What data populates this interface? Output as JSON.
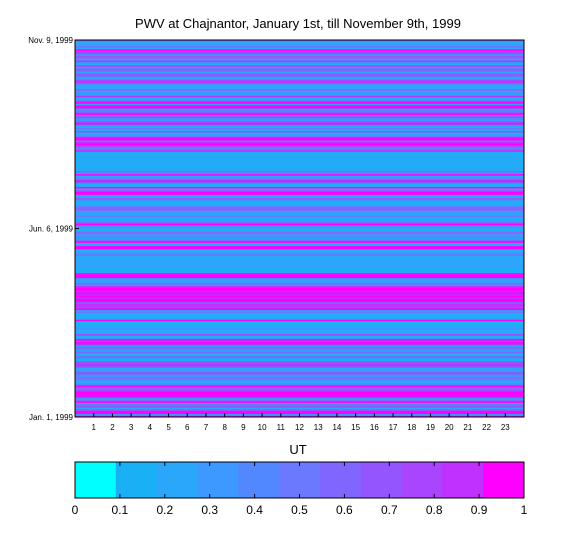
{
  "chart_data": {
    "type": "heatmap",
    "title": "PWV at Chajnantor, January 1st, till November 9th, 1999",
    "xlabel": "UT",
    "ylabel": "",
    "x_ticks": [
      "1",
      "2",
      "3",
      "4",
      "5",
      "6",
      "7",
      "8",
      "9",
      "10",
      "11",
      "12",
      "13",
      "14",
      "15",
      "16",
      "17",
      "18",
      "19",
      "20",
      "21",
      "22",
      "23"
    ],
    "y_ticks": [
      "Jan. 1, 1999",
      "Jun. 6, 1999",
      "Nov. 9, 1999"
    ],
    "colorbar": {
      "ticks": [
        "0",
        "0.1",
        "0.2",
        "0.3",
        "0.4",
        "0.5",
        "0.6",
        "0.7",
        "0.8",
        "0.9",
        "1"
      ],
      "colors": [
        "#00ffff",
        "#1ab0f5",
        "#2aa6fb",
        "#3d98ff",
        "#5288ff",
        "#6a79ff",
        "#8066ff",
        "#9455ff",
        "#a944ff",
        "#c030ff",
        "#ff00ff"
      ]
    },
    "bands": [
      {
        "y0": 0.0,
        "y1": 0.08,
        "value": 0.9
      },
      {
        "y0": 0.08,
        "y1": 0.14,
        "value": 0.5
      },
      {
        "y0": 0.14,
        "y1": 0.245,
        "value": 0.55
      },
      {
        "y0": 0.245,
        "y1": 0.275,
        "value": 0.15
      },
      {
        "y0": 0.275,
        "y1": 0.345,
        "value": 0.9
      },
      {
        "y0": 0.345,
        "y1": 0.38,
        "value": 0.35
      },
      {
        "y0": 0.38,
        "y1": 0.42,
        "value": 0.25
      },
      {
        "y0": 0.42,
        "y1": 0.47,
        "value": 0.3
      },
      {
        "y0": 0.47,
        "y1": 0.56,
        "value": 0.2
      },
      {
        "y0": 0.56,
        "y1": 0.6,
        "value": 0.45
      },
      {
        "y0": 0.6,
        "y1": 0.7,
        "value": 0.2
      },
      {
        "y0": 0.7,
        "y1": 0.72,
        "value": 0.5
      },
      {
        "y0": 0.72,
        "y1": 0.75,
        "value": 0.9
      },
      {
        "y0": 0.75,
        "y1": 0.88,
        "value": 0.55
      },
      {
        "y0": 0.88,
        "y1": 0.96,
        "value": 0.45
      },
      {
        "y0": 0.96,
        "y1": 1.0,
        "value": 0.6
      }
    ]
  }
}
